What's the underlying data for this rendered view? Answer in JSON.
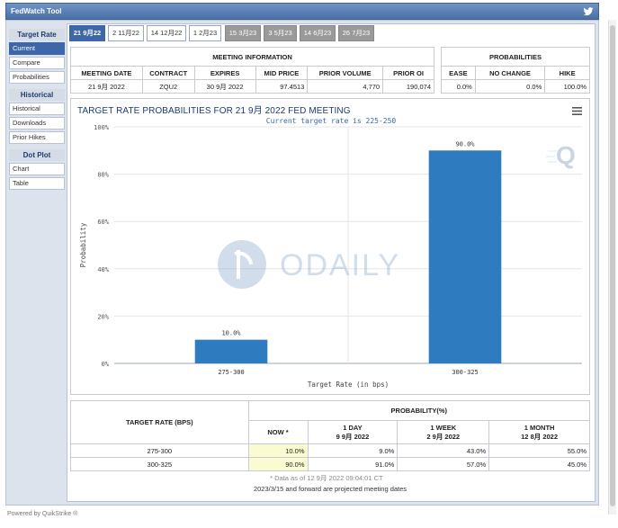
{
  "app": {
    "title": "FedWatch Tool"
  },
  "sidebar": {
    "sections": [
      {
        "heading": "Target Rate",
        "items": [
          "Current",
          "Compare",
          "Probabilities"
        ]
      },
      {
        "heading": "Historical",
        "items": [
          "Historical",
          "Downloads",
          "Prior Hikes"
        ]
      },
      {
        "heading": "Dot Plot",
        "items": [
          "Chart",
          "Table"
        ]
      }
    ],
    "active_item": "Current"
  },
  "tabs": [
    {
      "label": "21 9月22",
      "state": "active"
    },
    {
      "label": "2 11月22",
      "state": "normal"
    },
    {
      "label": "14 12月22",
      "state": "normal"
    },
    {
      "label": "1 2月23",
      "state": "normal"
    },
    {
      "label": "15 3月23",
      "state": "future"
    },
    {
      "label": "3 5月23",
      "state": "future"
    },
    {
      "label": "14 6月23",
      "state": "future"
    },
    {
      "label": "26 7月23",
      "state": "future"
    }
  ],
  "meeting_info": {
    "title": "MEETING INFORMATION",
    "headers": [
      "MEETING DATE",
      "CONTRACT",
      "EXPIRES",
      "MID PRICE",
      "PRIOR VOLUME",
      "PRIOR OI"
    ],
    "values": [
      "21 9月 2022",
      "ZQU2",
      "30 9月 2022",
      "97.4513",
      "4,770",
      "190,074"
    ]
  },
  "probabilities": {
    "title": "PROBABILITIES",
    "headers": [
      "EASE",
      "NO CHANGE",
      "HIKE"
    ],
    "values": [
      "0.0%",
      "0.0%",
      "100.0%"
    ]
  },
  "chart": {
    "title": "TARGET RATE PROBABILITIES FOR 21 9月 2022 FED MEETING",
    "subtitle": "Current target rate is 225-250",
    "watermark": "ODAILY",
    "corner_logo": "Q"
  },
  "chart_data": {
    "type": "bar",
    "categories": [
      "275-300",
      "300-325"
    ],
    "values": [
      10.0,
      90.0
    ],
    "data_labels": [
      "10.0%",
      "90.0%"
    ],
    "title": "TARGET RATE PROBABILITIES FOR 21 9月 2022 FED MEETING",
    "subtitle": "Current target rate is 225-250",
    "xlabel": "Target Rate (in bps)",
    "ylabel": "Probability",
    "ylim": [
      0,
      100
    ],
    "yticks": [
      "0%",
      "20%",
      "40%",
      "60%",
      "80%",
      "100%"
    ],
    "grid": true,
    "color": "#2e7bbf"
  },
  "prob_table": {
    "col_label": "TARGET RATE (BPS)",
    "group_header": "PROBABILITY(%)",
    "columns": [
      {
        "line1": "NOW *",
        "line2": ""
      },
      {
        "line1": "1 DAY",
        "line2": "9 9月 2022"
      },
      {
        "line1": "1 WEEK",
        "line2": "2 9月 2022"
      },
      {
        "line1": "1 MONTH",
        "line2": "12 8月 2022"
      }
    ],
    "rows": [
      {
        "rate": "275-300",
        "values": [
          "10.0%",
          "9.0%",
          "43.0%",
          "55.0%"
        ]
      },
      {
        "rate": "300-325",
        "values": [
          "90.0%",
          "91.0%",
          "57.0%",
          "45.0%"
        ]
      }
    ],
    "footnote": "* Data as of 12 9月 2022 09:04:01 CT"
  },
  "bottom_note": "2023/3/15 and forward are projected meeting dates",
  "cutoff_text": "Powered by QuikStrike ®",
  "colors": {
    "accent": "#3d67a8",
    "bar": "#2e7bbf",
    "now_highlight": "#fbfbd2"
  }
}
